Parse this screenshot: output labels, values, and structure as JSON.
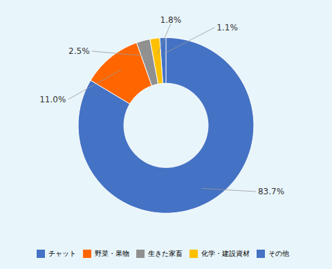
{
  "chart_data": {
    "type": "donut",
    "categories": [
      "チャット",
      "野菜・果物",
      "生きた家畜",
      "化学・建設資材",
      "その他"
    ],
    "values": [
      83.7,
      11.0,
      2.5,
      1.8,
      1.1
    ],
    "colors": [
      "#4472C4",
      "#FF6600",
      "#909090",
      "#FFC000",
      "#4472C4"
    ],
    "value_labels": [
      "83.7%",
      "11.0%",
      "2.5%",
      "1.8%",
      "1.1%"
    ],
    "data_labels": true,
    "legend": "bottom"
  }
}
